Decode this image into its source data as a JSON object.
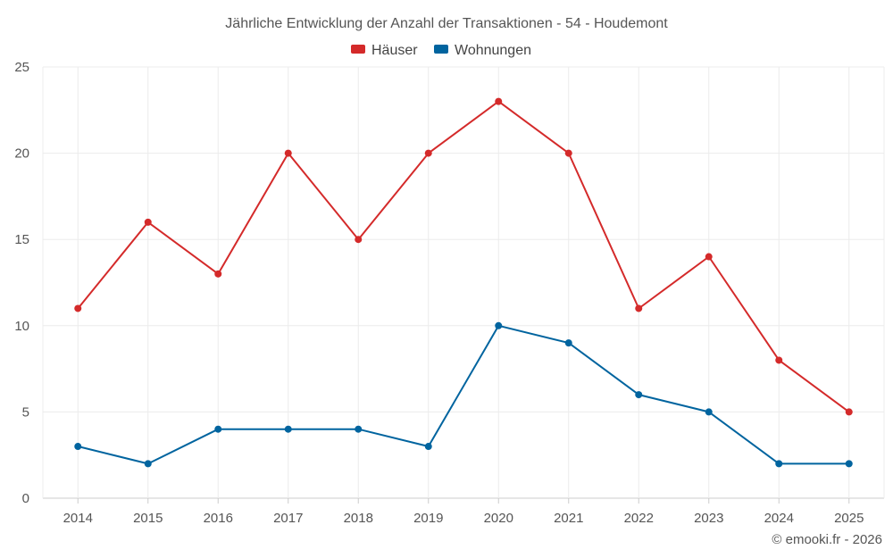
{
  "chart_data": {
    "type": "line",
    "title": "Jährliche Entwicklung der Anzahl der Transaktionen - 54 - Houdemont",
    "categories": [
      "2014",
      "2015",
      "2016",
      "2017",
      "2018",
      "2019",
      "2020",
      "2021",
      "2022",
      "2023",
      "2024",
      "2025"
    ],
    "series": [
      {
        "name": "Häuser",
        "color": "#d42a2a",
        "values": [
          11,
          16,
          13,
          20,
          15,
          20,
          23,
          20,
          11,
          14,
          8,
          5
        ]
      },
      {
        "name": "Wohnungen",
        "color": "#00649f",
        "values": [
          3,
          2,
          4,
          4,
          4,
          3,
          10,
          9,
          6,
          5,
          2,
          2
        ]
      }
    ],
    "ylim": [
      0,
      25
    ],
    "yticks": [
      0,
      5,
      10,
      15,
      20,
      25
    ],
    "xlabel": "",
    "ylabel": "",
    "grid": true,
    "legend": "top-center"
  },
  "credit": "© emooki.fr - 2026"
}
